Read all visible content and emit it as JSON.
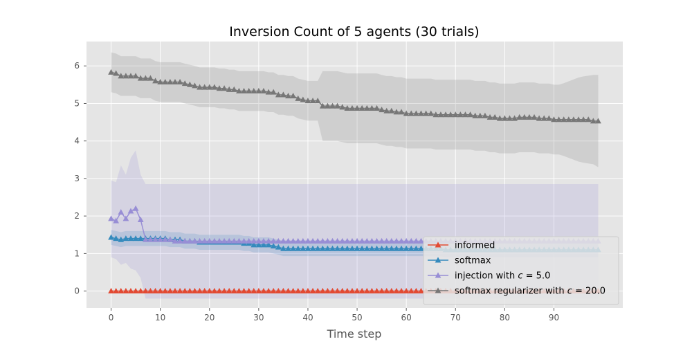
{
  "chart_data": {
    "type": "line",
    "title": "Inversion Count of 5 agents (30 trials)",
    "xlabel": "Time step",
    "ylabel": "",
    "xlim": [
      -5,
      104
    ],
    "ylim": [
      -0.45,
      6.65
    ],
    "xticks": [
      0,
      10,
      20,
      30,
      40,
      50,
      60,
      70,
      80,
      90
    ],
    "yticks": [
      0,
      1,
      2,
      3,
      4,
      5,
      6
    ],
    "grid": true,
    "legend_position": "lower-right",
    "x_start": 0,
    "series": [
      {
        "name": "informed",
        "color": "#e24a33",
        "marker": "triangle",
        "values": [
          0,
          0,
          0,
          0,
          0,
          0,
          0,
          0,
          0,
          0,
          0,
          0,
          0,
          0,
          0,
          0,
          0,
          0,
          0,
          0,
          0,
          0,
          0,
          0,
          0,
          0,
          0,
          0,
          0,
          0,
          0,
          0,
          0,
          0,
          0,
          0,
          0,
          0,
          0,
          0,
          0,
          0,
          0,
          0,
          0,
          0,
          0,
          0,
          0,
          0,
          0,
          0,
          0,
          0,
          0,
          0,
          0,
          0,
          0,
          0,
          0,
          0,
          0,
          0,
          0,
          0,
          0,
          0,
          0,
          0,
          0,
          0,
          0,
          0,
          0,
          0,
          0,
          0,
          0,
          0,
          0,
          0,
          0,
          0,
          0,
          0,
          0,
          0,
          0,
          0,
          0,
          0,
          0,
          0,
          0,
          0,
          0,
          0,
          0,
          0
        ],
        "lower": [
          0,
          0,
          0,
          0,
          0,
          0,
          0,
          0,
          0,
          0,
          0,
          0,
          0,
          0,
          0,
          0,
          0,
          0,
          0,
          0,
          0,
          0,
          0,
          0,
          0,
          0,
          0,
          0,
          0,
          0,
          0,
          0,
          0,
          0,
          0,
          0,
          0,
          0,
          0,
          0,
          0,
          0,
          0,
          0,
          0,
          0,
          0,
          0,
          0,
          0,
          0,
          0,
          0,
          0,
          0,
          0,
          0,
          0,
          0,
          0,
          0,
          0,
          0,
          0,
          0,
          0,
          0,
          0,
          0,
          0,
          0,
          0,
          0,
          0,
          0,
          0,
          0,
          0,
          0,
          0,
          0,
          0,
          0,
          0,
          0,
          0,
          0,
          0,
          0,
          0,
          0,
          0,
          0,
          0,
          0,
          0,
          0,
          0,
          0,
          0
        ],
        "upper": [
          0,
          0,
          0,
          0,
          0,
          0,
          0,
          0,
          0,
          0,
          0,
          0,
          0,
          0,
          0,
          0,
          0,
          0,
          0,
          0,
          0,
          0,
          0,
          0,
          0,
          0,
          0,
          0,
          0,
          0,
          0,
          0,
          0,
          0,
          0,
          0,
          0,
          0,
          0,
          0,
          0,
          0,
          0,
          0,
          0,
          0,
          0,
          0,
          0,
          0,
          0,
          0,
          0,
          0,
          0,
          0,
          0,
          0,
          0,
          0,
          0,
          0,
          0,
          0,
          0,
          0,
          0,
          0,
          0,
          0,
          0,
          0,
          0,
          0,
          0,
          0,
          0,
          0,
          0,
          0,
          0,
          0,
          0,
          0,
          0,
          0,
          0,
          0,
          0,
          0,
          0,
          0,
          0,
          0,
          0,
          0,
          0,
          0,
          0,
          0
        ]
      },
      {
        "name": "softmax",
        "color": "#348abd",
        "marker": "triangle",
        "values": [
          1.43,
          1.4,
          1.37,
          1.4,
          1.4,
          1.4,
          1.4,
          1.4,
          1.4,
          1.4,
          1.4,
          1.4,
          1.37,
          1.37,
          1.37,
          1.33,
          1.33,
          1.33,
          1.3,
          1.3,
          1.3,
          1.3,
          1.3,
          1.3,
          1.3,
          1.3,
          1.3,
          1.27,
          1.27,
          1.23,
          1.23,
          1.23,
          1.23,
          1.2,
          1.17,
          1.13,
          1.13,
          1.13,
          1.13,
          1.13,
          1.13,
          1.13,
          1.13,
          1.13,
          1.13,
          1.13,
          1.13,
          1.13,
          1.13,
          1.13,
          1.13,
          1.13,
          1.13,
          1.13,
          1.13,
          1.13,
          1.13,
          1.13,
          1.13,
          1.13,
          1.13,
          1.13,
          1.13,
          1.13,
          1.13,
          1.13,
          1.13,
          1.13,
          1.1,
          1.1,
          1.1,
          1.1,
          1.1,
          1.1,
          1.1,
          1.1,
          1.1,
          1.1,
          1.1,
          1.1,
          1.1,
          1.1,
          1.1,
          1.1,
          1.1,
          1.1,
          1.1,
          1.1,
          1.1,
          1.1,
          1.1,
          1.1,
          1.1,
          1.1,
          1.1,
          1.1,
          1.1,
          1.1,
          1.1,
          1.1
        ],
        "lower": [
          1.23,
          1.2,
          1.17,
          1.2,
          1.2,
          1.2,
          1.2,
          1.2,
          1.2,
          1.2,
          1.2,
          1.2,
          1.17,
          1.17,
          1.17,
          1.13,
          1.13,
          1.13,
          1.1,
          1.1,
          1.1,
          1.1,
          1.1,
          1.1,
          1.1,
          1.1,
          1.1,
          1.07,
          1.07,
          1.03,
          1.03,
          1.03,
          1.03,
          1.0,
          0.97,
          0.93,
          0.93,
          0.93,
          0.93,
          0.93,
          0.93,
          0.93,
          0.93,
          0.93,
          0.93,
          0.93,
          0.93,
          0.93,
          0.93,
          0.93,
          0.93,
          0.93,
          0.93,
          0.93,
          0.93,
          0.93,
          0.93,
          0.93,
          0.93,
          0.93,
          0.93,
          0.93,
          0.93,
          0.93,
          0.93,
          0.93,
          0.93,
          0.93,
          0.9,
          0.9,
          0.9,
          0.9,
          0.9,
          0.9,
          0.9,
          0.9,
          0.9,
          0.9,
          0.9,
          0.9,
          0.9,
          0.9,
          0.9,
          0.9,
          0.9,
          0.9,
          0.9,
          0.9,
          0.9,
          0.9,
          0.9,
          0.9,
          0.9,
          0.9,
          0.9,
          0.9,
          0.9,
          0.9,
          0.9,
          0.9
        ],
        "upper": [
          1.63,
          1.6,
          1.57,
          1.6,
          1.6,
          1.6,
          1.6,
          1.6,
          1.6,
          1.6,
          1.6,
          1.6,
          1.57,
          1.57,
          1.57,
          1.53,
          1.53,
          1.53,
          1.5,
          1.5,
          1.5,
          1.5,
          1.5,
          1.5,
          1.5,
          1.5,
          1.5,
          1.47,
          1.47,
          1.43,
          1.43,
          1.43,
          1.43,
          1.4,
          1.37,
          1.33,
          1.33,
          1.33,
          1.33,
          1.33,
          1.33,
          1.33,
          1.33,
          1.33,
          1.33,
          1.33,
          1.33,
          1.33,
          1.33,
          1.33,
          1.33,
          1.33,
          1.33,
          1.33,
          1.33,
          1.33,
          1.33,
          1.33,
          1.33,
          1.33,
          1.33,
          1.33,
          1.33,
          1.33,
          1.33,
          1.33,
          1.33,
          1.33,
          1.3,
          1.3,
          1.3,
          1.3,
          1.3,
          1.3,
          1.3,
          1.3,
          1.3,
          1.3,
          1.3,
          1.3,
          1.3,
          1.3,
          1.3,
          1.3,
          1.3,
          1.3,
          1.3,
          1.3,
          1.3,
          1.3,
          1.3,
          1.3,
          1.3,
          1.3,
          1.3,
          1.3,
          1.3,
          1.3,
          1.3,
          1.3
        ]
      },
      {
        "name": "injection with c = 5.0",
        "color": "#988ed5",
        "marker": "triangle",
        "values": [
          1.93,
          1.87,
          2.1,
          1.93,
          2.13,
          2.2,
          1.9,
          1.37,
          1.37,
          1.37,
          1.37,
          1.37,
          1.37,
          1.33,
          1.33,
          1.33,
          1.33,
          1.33,
          1.33,
          1.33,
          1.33,
          1.33,
          1.33,
          1.33,
          1.33,
          1.33,
          1.33,
          1.33,
          1.33,
          1.33,
          1.33,
          1.33,
          1.33,
          1.33,
          1.33,
          1.33,
          1.33,
          1.33,
          1.33,
          1.33,
          1.33,
          1.33,
          1.33,
          1.33,
          1.33,
          1.33,
          1.33,
          1.33,
          1.33,
          1.33,
          1.33,
          1.33,
          1.33,
          1.33,
          1.33,
          1.33,
          1.33,
          1.33,
          1.33,
          1.33,
          1.33,
          1.33,
          1.33,
          1.33,
          1.33,
          1.33,
          1.33,
          1.33,
          1.33,
          1.33,
          1.33,
          1.33,
          1.33,
          1.33,
          1.33,
          1.33,
          1.33,
          1.33,
          1.33,
          1.33,
          1.33,
          1.33,
          1.33,
          1.33,
          1.33,
          1.33,
          1.33,
          1.33,
          1.33,
          1.33,
          1.33,
          1.33,
          1.33,
          1.33,
          1.33,
          1.33,
          1.33,
          1.33,
          1.33,
          1.33
        ],
        "lower": [
          0.9,
          0.85,
          0.7,
          0.75,
          0.6,
          0.55,
          0.35,
          -0.2,
          -0.2,
          -0.2,
          -0.2,
          -0.2,
          -0.2,
          -0.2,
          -0.2,
          -0.2,
          -0.2,
          -0.2,
          -0.2,
          -0.2,
          -0.2,
          -0.2,
          -0.2,
          -0.2,
          -0.2,
          -0.2,
          -0.2,
          -0.2,
          -0.2,
          -0.2,
          -0.2,
          -0.2,
          -0.2,
          -0.2,
          -0.2,
          -0.2,
          -0.2,
          -0.2,
          -0.2,
          -0.2,
          -0.2,
          -0.2,
          -0.2,
          -0.2,
          -0.2,
          -0.2,
          -0.2,
          -0.2,
          -0.2,
          -0.2,
          -0.2,
          -0.2,
          -0.2,
          -0.2,
          -0.2,
          -0.2,
          -0.2,
          -0.2,
          -0.2,
          -0.2,
          -0.2,
          -0.2,
          -0.2,
          -0.2,
          -0.2,
          -0.2,
          -0.2,
          -0.2,
          -0.2,
          -0.2,
          -0.2,
          -0.2,
          -0.2,
          -0.2,
          -0.2,
          -0.2,
          -0.2,
          -0.2,
          -0.2,
          -0.2,
          -0.2,
          -0.2,
          -0.2,
          -0.2,
          -0.2,
          -0.2,
          -0.2,
          -0.2,
          -0.2,
          -0.2,
          -0.2,
          -0.2,
          -0.2,
          -0.2,
          -0.2,
          -0.2,
          -0.2,
          -0.2,
          -0.2,
          -0.2
        ],
        "upper": [
          2.95,
          2.9,
          3.35,
          3.1,
          3.55,
          3.75,
          3.1,
          2.85,
          2.85,
          2.85,
          2.85,
          2.85,
          2.85,
          2.85,
          2.85,
          2.85,
          2.85,
          2.85,
          2.85,
          2.85,
          2.85,
          2.85,
          2.85,
          2.85,
          2.85,
          2.85,
          2.85,
          2.85,
          2.85,
          2.85,
          2.85,
          2.85,
          2.85,
          2.85,
          2.85,
          2.85,
          2.85,
          2.85,
          2.85,
          2.85,
          2.85,
          2.85,
          2.85,
          2.85,
          2.85,
          2.85,
          2.85,
          2.85,
          2.85,
          2.85,
          2.85,
          2.85,
          2.85,
          2.85,
          2.85,
          2.85,
          2.85,
          2.85,
          2.85,
          2.85,
          2.85,
          2.85,
          2.85,
          2.85,
          2.85,
          2.85,
          2.85,
          2.85,
          2.85,
          2.85,
          2.85,
          2.85,
          2.85,
          2.85,
          2.85,
          2.85,
          2.85,
          2.85,
          2.85,
          2.85,
          2.85,
          2.85,
          2.85,
          2.85,
          2.85,
          2.85,
          2.85,
          2.85,
          2.85,
          2.85,
          2.85,
          2.85,
          2.85,
          2.85,
          2.85,
          2.85,
          2.85,
          2.85,
          2.85,
          2.85
        ]
      },
      {
        "name": "softmax regularizer with c = 20.0",
        "color": "#777777",
        "marker": "triangle",
        "values": [
          5.83,
          5.8,
          5.73,
          5.73,
          5.73,
          5.73,
          5.67,
          5.67,
          5.67,
          5.6,
          5.57,
          5.57,
          5.57,
          5.57,
          5.57,
          5.53,
          5.5,
          5.47,
          5.43,
          5.43,
          5.43,
          5.43,
          5.4,
          5.4,
          5.37,
          5.37,
          5.33,
          5.33,
          5.33,
          5.33,
          5.33,
          5.33,
          5.3,
          5.3,
          5.23,
          5.23,
          5.2,
          5.2,
          5.13,
          5.1,
          5.07,
          5.07,
          5.07,
          4.93,
          4.93,
          4.93,
          4.93,
          4.9,
          4.87,
          4.87,
          4.87,
          4.87,
          4.87,
          4.87,
          4.87,
          4.83,
          4.8,
          4.8,
          4.77,
          4.77,
          4.73,
          4.73,
          4.73,
          4.73,
          4.73,
          4.73,
          4.7,
          4.7,
          4.7,
          4.7,
          4.7,
          4.7,
          4.7,
          4.7,
          4.67,
          4.67,
          4.67,
          4.63,
          4.63,
          4.6,
          4.6,
          4.6,
          4.6,
          4.63,
          4.63,
          4.63,
          4.63,
          4.6,
          4.6,
          4.6,
          4.57,
          4.57,
          4.57,
          4.57,
          4.57,
          4.57,
          4.57,
          4.57,
          4.53,
          4.53
        ],
        "lower": [
          5.3,
          5.27,
          5.2,
          5.2,
          5.2,
          5.2,
          5.14,
          5.14,
          5.14,
          5.07,
          5.04,
          5.04,
          5.04,
          5.04,
          5.04,
          5.0,
          4.97,
          4.94,
          4.9,
          4.9,
          4.9,
          4.9,
          4.87,
          4.87,
          4.84,
          4.84,
          4.8,
          4.8,
          4.8,
          4.8,
          4.8,
          4.8,
          4.77,
          4.77,
          4.7,
          4.7,
          4.67,
          4.67,
          4.6,
          4.57,
          4.54,
          4.54,
          4.54,
          4.0,
          4.0,
          4.0,
          4.0,
          3.97,
          3.94,
          3.94,
          3.94,
          3.94,
          3.94,
          3.94,
          3.94,
          3.9,
          3.87,
          3.87,
          3.84,
          3.84,
          3.8,
          3.8,
          3.8,
          3.8,
          3.8,
          3.8,
          3.77,
          3.77,
          3.77,
          3.77,
          3.77,
          3.77,
          3.77,
          3.77,
          3.74,
          3.74,
          3.74,
          3.7,
          3.7,
          3.67,
          3.67,
          3.67,
          3.67,
          3.7,
          3.7,
          3.7,
          3.7,
          3.67,
          3.67,
          3.67,
          3.64,
          3.64,
          3.6,
          3.55,
          3.5,
          3.45,
          3.42,
          3.4,
          3.38,
          3.3
        ],
        "upper": [
          6.36,
          6.33,
          6.26,
          6.26,
          6.26,
          6.26,
          6.2,
          6.2,
          6.2,
          6.13,
          6.1,
          6.1,
          6.1,
          6.1,
          6.1,
          6.06,
          6.03,
          6.0,
          5.96,
          5.96,
          5.96,
          5.96,
          5.93,
          5.93,
          5.9,
          5.9,
          5.86,
          5.86,
          5.86,
          5.86,
          5.86,
          5.86,
          5.83,
          5.83,
          5.76,
          5.76,
          5.73,
          5.73,
          5.66,
          5.63,
          5.6,
          5.6,
          5.6,
          5.86,
          5.86,
          5.86,
          5.86,
          5.83,
          5.8,
          5.8,
          5.8,
          5.8,
          5.8,
          5.8,
          5.8,
          5.76,
          5.73,
          5.73,
          5.7,
          5.7,
          5.66,
          5.66,
          5.66,
          5.66,
          5.66,
          5.66,
          5.63,
          5.63,
          5.63,
          5.63,
          5.63,
          5.63,
          5.63,
          5.63,
          5.6,
          5.6,
          5.6,
          5.56,
          5.56,
          5.53,
          5.53,
          5.53,
          5.53,
          5.56,
          5.56,
          5.56,
          5.56,
          5.53,
          5.53,
          5.53,
          5.5,
          5.5,
          5.54,
          5.59,
          5.64,
          5.69,
          5.72,
          5.74,
          5.76,
          5.76
        ]
      }
    ]
  },
  "style": {
    "plot_background": "#e5e5e5",
    "grid_color": "#ffffff",
    "band_opacity": 0.2
  }
}
